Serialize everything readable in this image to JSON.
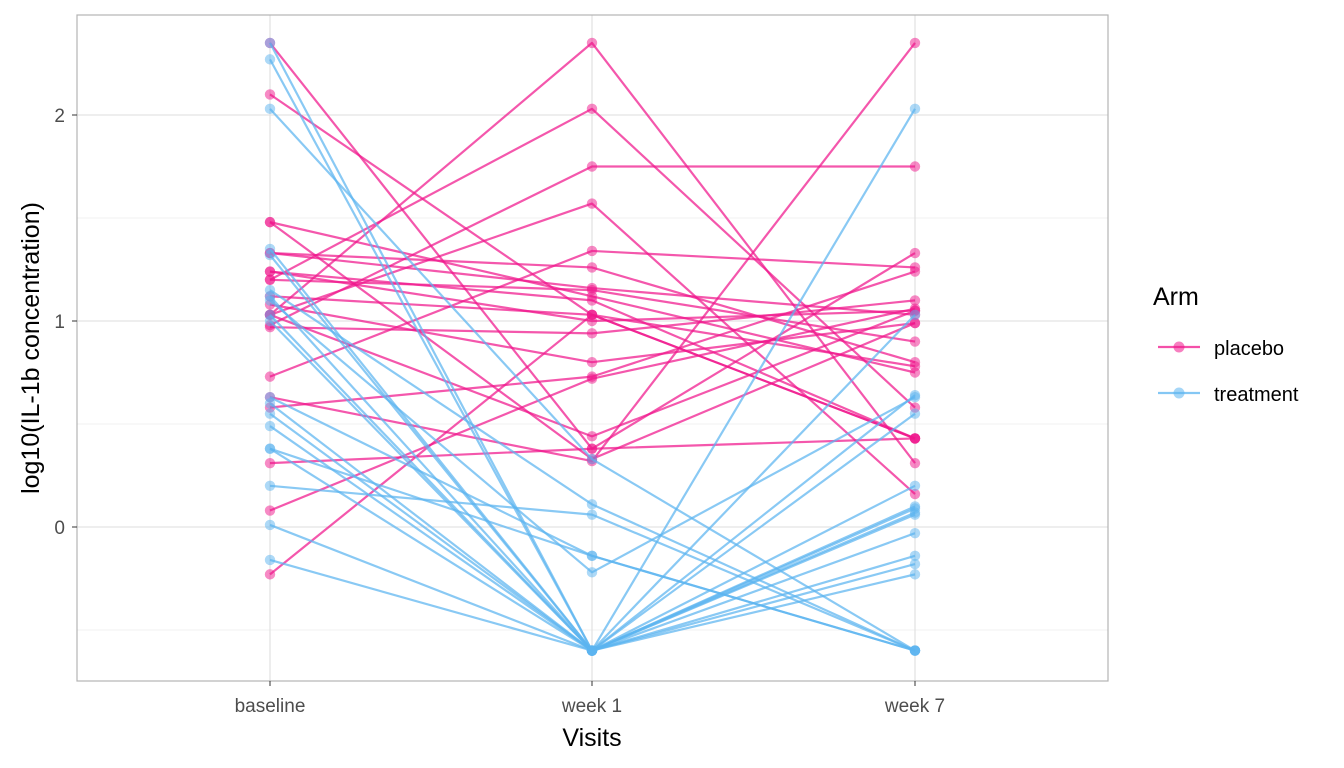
{
  "chart_data": {
    "type": "line",
    "title": "",
    "xlabel": "Visits",
    "ylabel": "log10(IL-1b concentration)",
    "categories": [
      "baseline",
      "week 1",
      "week 7"
    ],
    "y_ticks": [
      0,
      1,
      2
    ],
    "y_tick_labels": [
      "0",
      "1",
      "2"
    ],
    "ylim": [
      -0.73,
      2.5
    ],
    "grid": true,
    "legend": {
      "title": "Arm",
      "position": "right",
      "entries": [
        "placebo",
        "treatment"
      ]
    },
    "colors": {
      "placebo": "#F0168C",
      "treatment": "#5BB4F0"
    },
    "series": [
      {
        "name": "placebo",
        "lines": [
          [
            2.35,
            0.38,
            0.43
          ],
          [
            2.1,
            1.03,
            0.43
          ],
          [
            1.48,
            1.12,
            0.75
          ],
          [
            1.48,
            0.33,
            0.99
          ],
          [
            1.33,
            1.26,
            0.8
          ],
          [
            1.33,
            1.16,
            1.03
          ],
          [
            1.24,
            1.0,
            1.05
          ],
          [
            1.24,
            1.1,
            0.43
          ],
          [
            1.2,
            1.15,
            0.9
          ],
          [
            1.2,
            2.03,
            0.58
          ],
          [
            1.12,
            1.03,
            0.78
          ],
          [
            1.08,
            0.8,
            0.99
          ],
          [
            1.03,
            1.57,
            0.16
          ],
          [
            1.03,
            0.44,
            1.05
          ],
          [
            1.03,
            2.35,
            0.31
          ],
          [
            0.98,
            1.75,
            1.75
          ],
          [
            0.97,
            0.94,
            1.1
          ],
          [
            0.73,
            1.34,
            1.26
          ],
          [
            0.63,
            0.32,
            2.35
          ],
          [
            0.58,
            0.73,
            1.24
          ],
          [
            0.31,
            0.38,
            1.33
          ],
          [
            0.08,
            0.72,
            1.06
          ],
          [
            -0.23,
            1.03,
            0.43
          ]
        ]
      },
      {
        "name": "treatment",
        "lines": [
          [
            2.35,
            -0.6,
            0.1
          ],
          [
            2.27,
            -0.6,
            0.07
          ],
          [
            2.03,
            0.33,
            -0.6
          ],
          [
            1.35,
            -0.6,
            0.64
          ],
          [
            1.32,
            -0.6,
            0.09
          ],
          [
            1.15,
            0.11,
            -0.6
          ],
          [
            1.12,
            -0.6,
            0.55
          ],
          [
            1.03,
            -0.6,
            1.03
          ],
          [
            0.63,
            -0.14,
            -0.6
          ],
          [
            0.6,
            -0.6,
            0.2
          ],
          [
            0.55,
            -0.6,
            0.06
          ],
          [
            0.49,
            -0.6,
            -0.03
          ],
          [
            0.38,
            -0.14,
            -0.6
          ],
          [
            0.38,
            -0.6,
            -0.14
          ],
          [
            0.2,
            0.06,
            -0.6
          ],
          [
            0.01,
            -0.6,
            -0.18
          ],
          [
            -0.16,
            -0.6,
            -0.23
          ],
          [
            1.1,
            -0.22,
            0.63
          ],
          [
            1.0,
            -0.6,
            2.03
          ]
        ]
      }
    ]
  }
}
